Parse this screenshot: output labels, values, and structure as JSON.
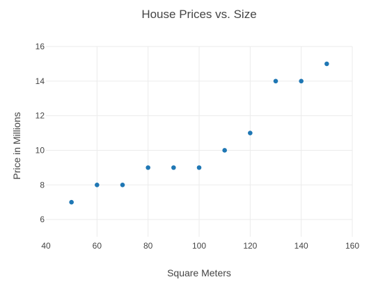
{
  "chart_data": {
    "type": "scatter",
    "title": "House Prices vs. Size",
    "xlabel": "Square Meters",
    "ylabel": "Price in Millions",
    "xlim": [
      40,
      160
    ],
    "ylim": [
      5,
      16
    ],
    "xticks": [
      40,
      60,
      80,
      100,
      120,
      140,
      160
    ],
    "yticks": [
      6,
      8,
      10,
      12,
      14,
      16
    ],
    "grid": true,
    "marker_color": "#1f77b4",
    "series": [
      {
        "x": [
          50,
          60,
          70,
          80,
          90,
          100,
          110,
          120,
          130,
          140,
          150
        ],
        "y": [
          7,
          8,
          8,
          9,
          9,
          9,
          10,
          11,
          14,
          14,
          15
        ]
      }
    ]
  }
}
